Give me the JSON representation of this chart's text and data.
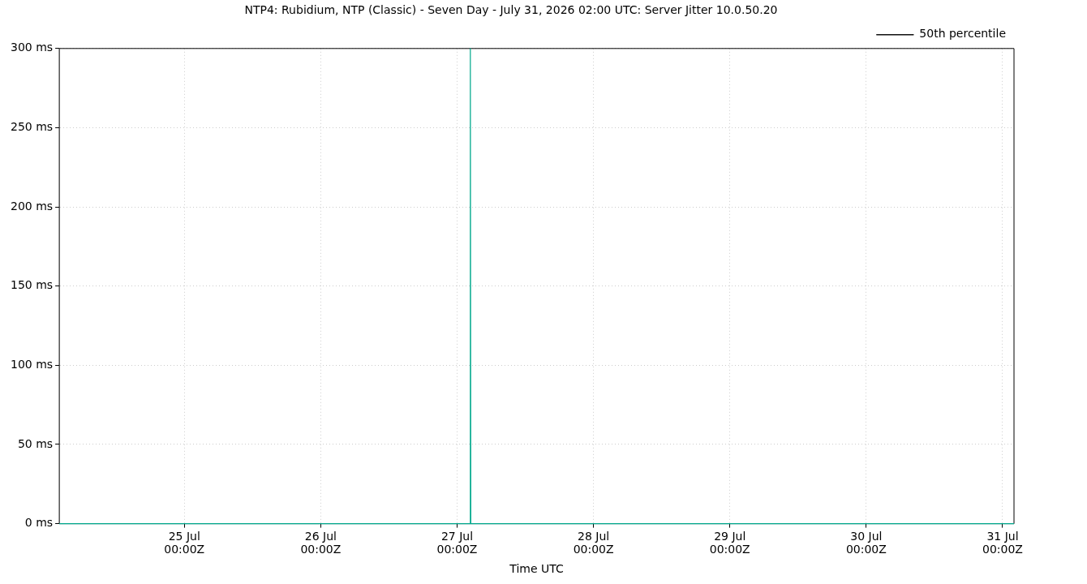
{
  "chart_data": {
    "type": "line",
    "title": "NTP4: Rubidium, NTP (Classic) - Seven Day - July 31, 2026 02:00 UTC: Server Jitter 10.0.50.20",
    "xlabel": "Time UTC",
    "series": [
      {
        "color": "#00a88c",
        "x": [
          "2026-07-24T02:00",
          "2026-07-27T02:15",
          "2026-07-27T02:20",
          "2026-07-27T02:25",
          "2026-07-31T02:00"
        ],
        "values": [
          0,
          0,
          300,
          0,
          0
        ]
      },
      {
        "name": "50th percentile",
        "color": "#000000"
      }
    ],
    "xlim": [
      "2026-07-24T02:00",
      "2026-07-31T02:00"
    ],
    "xticks": [
      {
        "value": "2026-07-25T00:00",
        "label": "25 Jul\n00:00Z"
      },
      {
        "value": "2026-07-26T00:00",
        "label": "26 Jul\n00:00Z"
      },
      {
        "value": "2026-07-27T00:00",
        "label": "27 Jul\n00:00Z"
      },
      {
        "value": "2026-07-28T00:00",
        "label": "28 Jul\n00:00Z"
      },
      {
        "value": "2026-07-29T00:00",
        "label": "29 Jul\n00:00Z"
      },
      {
        "value": "2026-07-30T00:00",
        "label": "30 Jul\n00:00Z"
      },
      {
        "value": "2026-07-31T00:00",
        "label": "31 Jul\n00:00Z"
      }
    ],
    "ylim": [
      0,
      300
    ],
    "yticks": [
      {
        "value": 0,
        "label": "0 ms"
      },
      {
        "value": 50,
        "label": "50 ms"
      },
      {
        "value": 100,
        "label": "100 ms"
      },
      {
        "value": 150,
        "label": "150 ms"
      },
      {
        "value": 200,
        "label": "200 ms"
      },
      {
        "value": 250,
        "label": "250 ms"
      },
      {
        "value": 300,
        "label": "300 ms"
      }
    ],
    "grid": true,
    "legend": "top right",
    "marker": "none",
    "line_style": "solid"
  }
}
